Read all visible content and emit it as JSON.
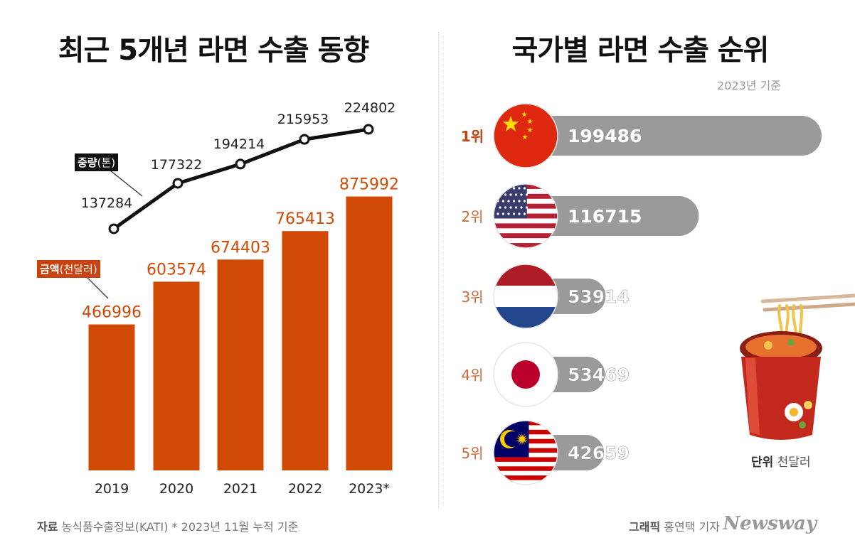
{
  "left_title": "최근 5개년 라면 수출 동향",
  "right_title": "국가별 라면 수출 순위",
  "ranking_basis": "2023년 기준",
  "weight_legend": {
    "bold": "중량",
    "unit": "(톤)"
  },
  "amount_legend": {
    "bold": "금액",
    "unit": "(천달러)"
  },
  "unit_note": {
    "bold": "단위",
    "text": " 천달러"
  },
  "source": {
    "bold": "자료",
    "text": " 농식품수출정보(KATI)   * 2023년 11월 누적 기준"
  },
  "credit": {
    "bold": "그래픽",
    "text": " 홍연택 기자"
  },
  "brand": "Newsway",
  "colors": {
    "bar": "#d04a05",
    "line": "#111111",
    "rank_pill": "#9a9a9a",
    "rank_first": "#c94312",
    "rank_other": "#d06a3a"
  },
  "chart_data": [
    {
      "type": "bar",
      "categories": [
        "2019",
        "2020",
        "2021",
        "2022",
        "2023*"
      ],
      "series": [
        {
          "name": "금액(천달러)",
          "values": [
            466996,
            603574,
            674403,
            765413,
            875992
          ]
        }
      ],
      "ylim": [
        0,
        1000000
      ]
    },
    {
      "type": "line",
      "categories": [
        "2019",
        "2020",
        "2021",
        "2022",
        "2023*"
      ],
      "series": [
        {
          "name": "중량(톤)",
          "values": [
            137284,
            177322,
            194214,
            215953,
            224802
          ]
        }
      ],
      "ylim": [
        137284,
        224802
      ]
    },
    {
      "type": "bar",
      "orientation": "horizontal",
      "items": [
        {
          "rank": "1위",
          "value": 199486,
          "flag": "china-flag-icon"
        },
        {
          "rank": "2위",
          "value": 116715,
          "flag": "usa-flag-icon"
        },
        {
          "rank": "3위",
          "value": 53914,
          "flag": "netherlands-flag-icon"
        },
        {
          "rank": "4위",
          "value": 53469,
          "flag": "japan-flag-icon"
        },
        {
          "rank": "5위",
          "value": 42659,
          "flag": "malaysia-flag-icon"
        }
      ],
      "xlim": [
        0,
        199486
      ]
    }
  ]
}
